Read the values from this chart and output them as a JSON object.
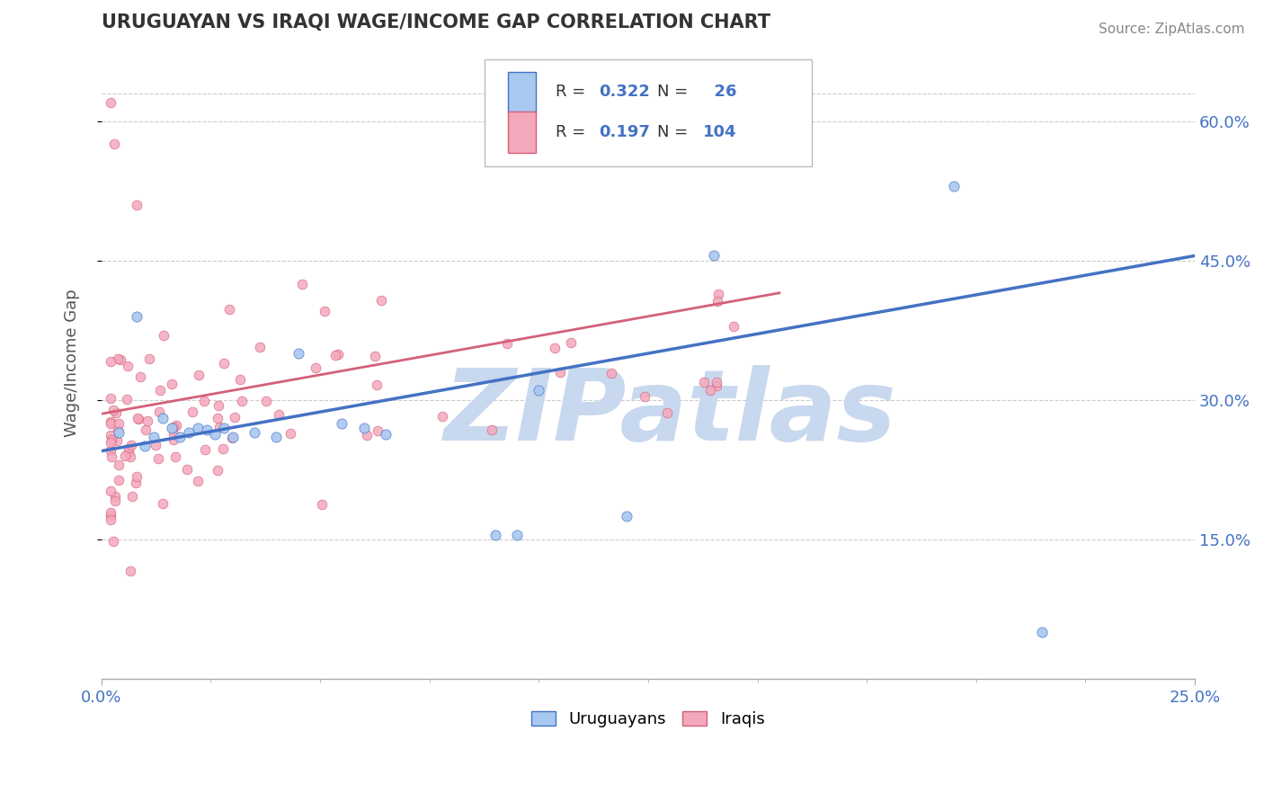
{
  "title": "URUGUAYAN VS IRAQI WAGE/INCOME GAP CORRELATION CHART",
  "source": "Source: ZipAtlas.com",
  "ylabel": "Wage/Income Gap",
  "xlim": [
    0.0,
    0.25
  ],
  "ylim": [
    0.0,
    0.68
  ],
  "ytick_positions": [
    0.15,
    0.3,
    0.45,
    0.6
  ],
  "ytick_labels": [
    "15.0%",
    "30.0%",
    "45.0%",
    "60.0%"
  ],
  "uruguayan_color": "#a8c8f0",
  "iraqi_color": "#f4a8bc",
  "uruguayan_line_color": "#4472c4",
  "iraqi_line_color": "#d4607a",
  "R_uruguayan": 0.322,
  "N_uruguayan": 26,
  "R_iraqi": 0.197,
  "N_iraqi": 104,
  "watermark": "ZIPatlas",
  "watermark_color": "#c8d8ee",
  "grid_color": "#cccccc",
  "tick_label_color": "#4472c4",
  "title_color": "#333333",
  "source_color": "#888888",
  "ylabel_color": "#555555"
}
